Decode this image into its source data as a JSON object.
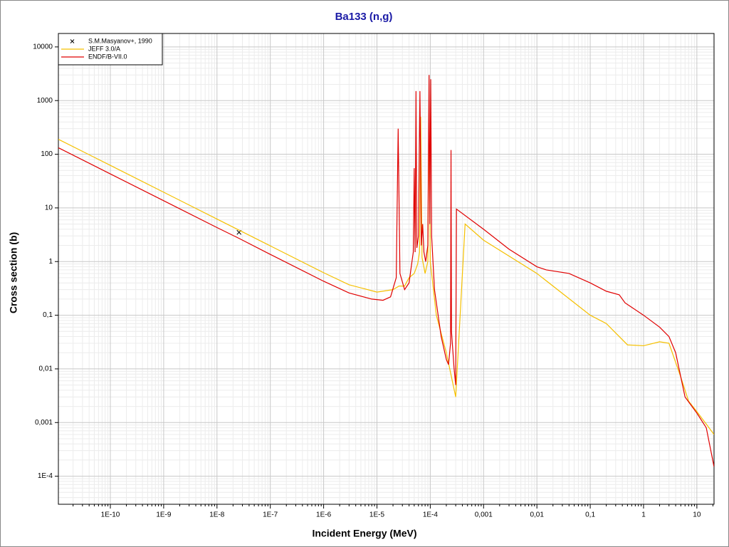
{
  "chart_data": {
    "type": "line",
    "title": "Ba133 (n,g)",
    "x_label": "Incident Energy (MeV)",
    "y_label": "Cross section (b)",
    "xlog": true,
    "ylog": true,
    "grid": true,
    "minor_grid": true,
    "legend": "top-left",
    "xlim": [
      1.06e-11,
      21
    ],
    "ylim": [
      3e-05,
      17800
    ],
    "xticks": [
      {
        "value": 1e-10,
        "label": "1E-10"
      },
      {
        "value": 1e-09,
        "label": "1E-9"
      },
      {
        "value": 1e-08,
        "label": "1E-8"
      },
      {
        "value": 1e-07,
        "label": "1E-7"
      },
      {
        "value": 1e-06,
        "label": "1E-6"
      },
      {
        "value": 1e-05,
        "label": "1E-5"
      },
      {
        "value": 0.0001,
        "label": "1E-4"
      },
      {
        "value": 0.001,
        "label": "0,001"
      },
      {
        "value": 0.01,
        "label": "0,01"
      },
      {
        "value": 0.1,
        "label": "0,1"
      },
      1,
      10
    ],
    "yticks": [
      10000,
      1000,
      100,
      10,
      1,
      {
        "value": 0.1,
        "label": "0,1"
      },
      {
        "value": 0.01,
        "label": "0,01"
      },
      {
        "value": 0.001,
        "label": "0,001"
      },
      {
        "value": 0.0001,
        "label": "1E-4"
      }
    ],
    "series": [
      {
        "name": "S.M.Masyanov+, 1990",
        "type": "scatter",
        "color": "#000000",
        "x": [
          2.59e-08
        ],
        "values": [
          3.5
        ]
      },
      {
        "name": "JEFF 3.0/A",
        "type": "line",
        "color": "#f5c000",
        "x": [
          1.06e-11,
          1e-10,
          1e-09,
          1e-08,
          1e-07,
          1e-06,
          3e-06,
          1e-05,
          2e-05,
          2.6e-05,
          3.3e-05,
          4e-05,
          5e-05,
          5.8e-05,
          6.3e-05,
          6.6e-05,
          7e-05,
          8e-05,
          9e-05,
          9.5e-05,
          0.0001,
          0.00013,
          0.0002,
          0.0003,
          0.00045,
          0.001,
          0.01,
          0.1,
          0.2,
          0.5,
          1,
          2,
          3,
          5,
          7,
          10,
          21
        ],
        "values": [
          190,
          62,
          19.6,
          6.2,
          1.96,
          0.62,
          0.37,
          0.27,
          0.3,
          0.35,
          0.35,
          0.5,
          0.6,
          0.9,
          1.5,
          500,
          1.2,
          0.6,
          1,
          1000,
          1,
          0.1,
          0.02,
          0.003,
          5,
          2.5,
          0.6,
          0.1,
          0.07,
          0.028,
          0.027,
          0.032,
          0.03,
          0.007,
          0.0025,
          0.0016,
          0.0006
        ]
      },
      {
        "name": "ENDF/B-VII.0",
        "type": "line",
        "color": "#e00000",
        "x": [
          1.06e-11,
          1e-10,
          1e-09,
          1e-08,
          2.6e-08,
          1e-07,
          1e-06,
          3e-06,
          8e-06,
          1.3e-05,
          1.8e-05,
          2.3e-05,
          2.5e-05,
          2.7e-05,
          3.3e-05,
          4e-05,
          4.8e-05,
          5e-05,
          5.2e-05,
          5.4e-05,
          5.6e-05,
          6e-05,
          6.4e-05,
          6.8e-05,
          7.2e-05,
          7.6e-05,
          8.2e-05,
          9e-05,
          9.5e-05,
          9.8e-05,
          0.000102,
          0.000106,
          0.00012,
          0.00016,
          0.0002,
          0.00022,
          0.00024,
          0.000245,
          0.00025,
          0.00028,
          0.0003,
          0.00031,
          0.001,
          0.003,
          0.01,
          0.015,
          0.04,
          0.1,
          0.2,
          0.35,
          0.45,
          1,
          2,
          3,
          4,
          6,
          10,
          15,
          21
        ],
        "values": [
          132,
          43,
          13.6,
          4.3,
          2.7,
          1.36,
          0.43,
          0.26,
          0.2,
          0.19,
          0.22,
          0.5,
          300,
          0.6,
          0.3,
          0.4,
          1.5,
          55,
          1.5,
          1500,
          1.8,
          3,
          1500,
          2,
          5,
          1.5,
          1,
          2,
          3000,
          5,
          2500,
          3,
          0.3,
          0.04,
          0.015,
          0.012,
          0.03,
          120,
          0.05,
          0.01,
          0.005,
          9.5,
          4,
          1.7,
          0.8,
          0.7,
          0.6,
          0.4,
          0.28,
          0.24,
          0.17,
          0.1,
          0.06,
          0.04,
          0.02,
          0.003,
          0.0015,
          0.0008,
          0.00015
        ]
      }
    ]
  }
}
